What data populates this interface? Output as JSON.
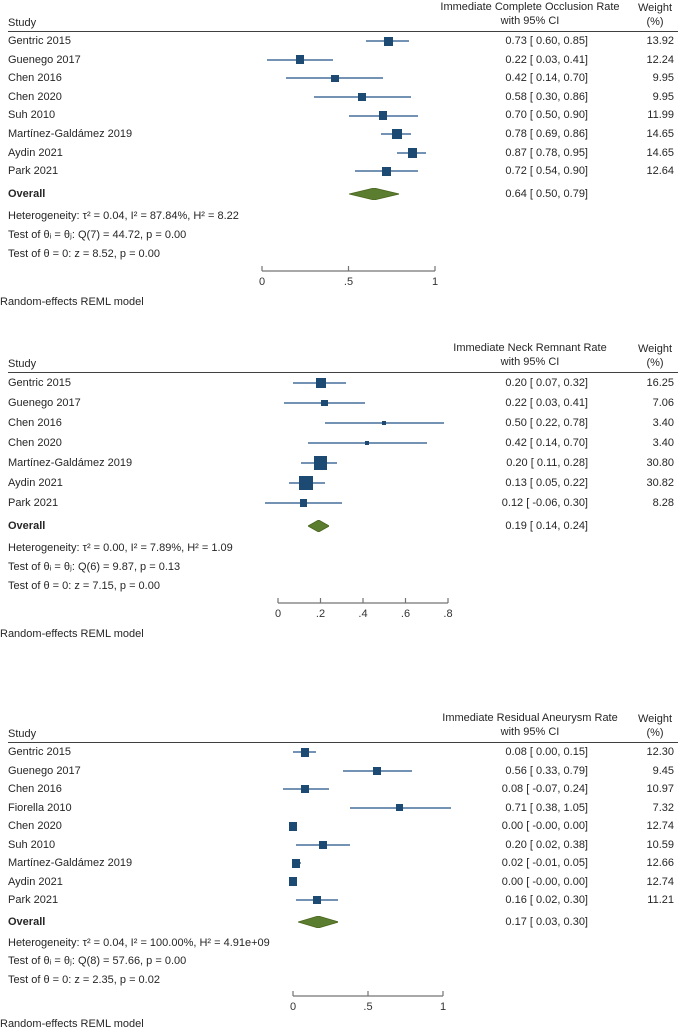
{
  "colors": {
    "square": "#1d4a73",
    "ci_line": "#7492b3",
    "diamond": "#5b7d2f",
    "diamond_stroke": "#4a661f",
    "axis": "#737373",
    "rule": "#404040",
    "text": "#262626"
  },
  "chart_data": [
    {
      "type": "forest",
      "title": [
        "Immediate Complete Occlusion Rate",
        "with 95% CI"
      ],
      "study_header": "Study",
      "weight_header": [
        "Weight",
        "(%)"
      ],
      "axis": {
        "min": 0,
        "max": 1,
        "tick_values": [
          0,
          0.5,
          1
        ],
        "tick_labels": [
          "0",
          ".5",
          "1"
        ]
      },
      "studies": [
        {
          "label": "Gentric 2015",
          "est": 0.73,
          "lo": 0.6,
          "hi": 0.85,
          "ci_text": "0.73 [ 0.60, 0.85]",
          "weight": "13.92"
        },
        {
          "label": "Guenego 2017",
          "est": 0.22,
          "lo": 0.03,
          "hi": 0.41,
          "ci_text": "0.22 [ 0.03, 0.41]",
          "weight": "12.24"
        },
        {
          "label": "Chen 2016",
          "est": 0.42,
          "lo": 0.14,
          "hi": 0.7,
          "ci_text": "0.42 [ 0.14, 0.70]",
          "weight": "9.95"
        },
        {
          "label": "Chen 2020",
          "est": 0.58,
          "lo": 0.3,
          "hi": 0.86,
          "ci_text": "0.58 [ 0.30, 0.86]",
          "weight": "9.95"
        },
        {
          "label": "Suh 2010",
          "est": 0.7,
          "lo": 0.5,
          "hi": 0.9,
          "ci_text": "0.70 [ 0.50, 0.90]",
          "weight": "11.99"
        },
        {
          "label": "Martínez-Galdámez 2019",
          "est": 0.78,
          "lo": 0.69,
          "hi": 0.86,
          "ci_text": "0.78 [ 0.69, 0.86]",
          "weight": "14.65"
        },
        {
          "label": "Aydin 2021",
          "est": 0.87,
          "lo": 0.78,
          "hi": 0.95,
          "ci_text": "0.87 [ 0.78, 0.95]",
          "weight": "14.65"
        },
        {
          "label": "Park 2021",
          "est": 0.72,
          "lo": 0.54,
          "hi": 0.9,
          "ci_text": "0.72 [ 0.54, 0.90]",
          "weight": "12.64"
        }
      ],
      "overall": {
        "label": "Overall",
        "est": 0.64,
        "lo": 0.5,
        "hi": 0.79,
        "ci_text": "0.64 [ 0.50, 0.79]"
      },
      "heterogeneity": "Heterogeneity: τ² = 0.04, I² = 87.84%, H² = 8.22",
      "test_theta": "Test of θᵢ = θⱼ: Q(7) = 44.72, p = 0.00",
      "test_z": "Test of θ = 0: z = 8.52, p = 0.00",
      "model_label": "Random-effects REML model"
    },
    {
      "type": "forest",
      "title": [
        "Immediate Neck Remnant Rate",
        "with 95% CI"
      ],
      "study_header": "Study",
      "weight_header": [
        "Weight",
        "(%)"
      ],
      "axis": {
        "min": 0,
        "max": 0.8,
        "tick_values": [
          0,
          0.2,
          0.4,
          0.6,
          0.8
        ],
        "tick_labels": [
          "0",
          ".2",
          ".4",
          ".6",
          ".8"
        ]
      },
      "studies": [
        {
          "label": "Gentric 2015",
          "est": 0.2,
          "lo": 0.07,
          "hi": 0.32,
          "ci_text": "0.20 [ 0.07, 0.32]",
          "weight": "16.25"
        },
        {
          "label": "Guenego 2017",
          "est": 0.22,
          "lo": 0.03,
          "hi": 0.41,
          "ci_text": "0.22 [ 0.03, 0.41]",
          "weight": "7.06"
        },
        {
          "label": "Chen 2016",
          "est": 0.5,
          "lo": 0.22,
          "hi": 0.78,
          "ci_text": "0.50 [ 0.22, 0.78]",
          "weight": "3.40"
        },
        {
          "label": "Chen 2020",
          "est": 0.42,
          "lo": 0.14,
          "hi": 0.7,
          "ci_text": "0.42 [ 0.14, 0.70]",
          "weight": "3.40"
        },
        {
          "label": "Martínez-Galdámez 2019",
          "est": 0.2,
          "lo": 0.11,
          "hi": 0.28,
          "ci_text": "0.20 [ 0.11, 0.28]",
          "weight": "30.80"
        },
        {
          "label": "Aydin 2021",
          "est": 0.13,
          "lo": 0.05,
          "hi": 0.22,
          "ci_text": "0.13 [ 0.05, 0.22]",
          "weight": "30.82"
        },
        {
          "label": "Park 2021",
          "est": 0.12,
          "lo": -0.06,
          "hi": 0.3,
          "ci_text": "0.12 [ -0.06, 0.30]",
          "weight": "8.28"
        }
      ],
      "overall": {
        "label": "Overall",
        "est": 0.19,
        "lo": 0.14,
        "hi": 0.24,
        "ci_text": "0.19 [ 0.14, 0.24]"
      },
      "heterogeneity": "Heterogeneity: τ² = 0.00, I² = 7.89%, H² = 1.09",
      "test_theta": "Test of θᵢ = θⱼ: Q(6) = 9.87, p = 0.13",
      "test_z": "Test of θ = 0: z = 7.15, p = 0.00",
      "model_label": "Random-effects REML model"
    },
    {
      "type": "forest",
      "title": [
        "Immediate Residual Aneurysm Rate",
        "with 95% CI"
      ],
      "study_header": "Study",
      "weight_header": [
        "Weight",
        "(%)"
      ],
      "axis": {
        "min": 0,
        "max": 1,
        "tick_values": [
          0,
          0.5,
          1
        ],
        "tick_labels": [
          "0",
          ".5",
          "1"
        ]
      },
      "studies": [
        {
          "label": "Gentric 2015",
          "est": 0.08,
          "lo": 0.0,
          "hi": 0.15,
          "ci_text": "0.08 [ 0.00, 0.15]",
          "weight": "12.30"
        },
        {
          "label": "Guenego 2017",
          "est": 0.56,
          "lo": 0.33,
          "hi": 0.79,
          "ci_text": "0.56 [ 0.33, 0.79]",
          "weight": "9.45"
        },
        {
          "label": "Chen 2016",
          "est": 0.08,
          "lo": -0.07,
          "hi": 0.24,
          "ci_text": "0.08 [ -0.07, 0.24]",
          "weight": "10.97"
        },
        {
          "label": "Fiorella 2010",
          "est": 0.71,
          "lo": 0.38,
          "hi": 1.05,
          "ci_text": "0.71 [ 0.38, 1.05]",
          "weight": "7.32"
        },
        {
          "label": "Chen 2020",
          "est": 0.0,
          "lo": 0.0,
          "hi": 0.0,
          "ci_text": "0.00 [ -0.00, 0.00]",
          "weight": "12.74"
        },
        {
          "label": "Suh 2010",
          "est": 0.2,
          "lo": 0.02,
          "hi": 0.38,
          "ci_text": "0.20 [ 0.02, 0.38]",
          "weight": "10.59"
        },
        {
          "label": "Martínez-Galdámez 2019",
          "est": 0.02,
          "lo": -0.01,
          "hi": 0.05,
          "ci_text": "0.02 [ -0.01, 0.05]",
          "weight": "12.66"
        },
        {
          "label": "Aydin 2021",
          "est": 0.0,
          "lo": 0.0,
          "hi": 0.0,
          "ci_text": "0.00 [ -0.00, 0.00]",
          "weight": "12.74"
        },
        {
          "label": "Park 2021",
          "est": 0.16,
          "lo": 0.02,
          "hi": 0.3,
          "ci_text": "0.16 [ 0.02, 0.30]",
          "weight": "11.21"
        }
      ],
      "overall": {
        "label": "Overall",
        "est": 0.17,
        "lo": 0.03,
        "hi": 0.3,
        "ci_text": "0.17 [ 0.03, 0.30]"
      },
      "heterogeneity": "Heterogeneity: τ² = 0.04, I² = 100.00%, H² = 4.91e+09",
      "test_theta": "Test of θᵢ = θⱼ: Q(8) = 57.66, p = 0.00",
      "test_z": "Test of θ = 0: z = 2.35, p = 0.02",
      "model_label": "Random-effects REML model"
    }
  ]
}
